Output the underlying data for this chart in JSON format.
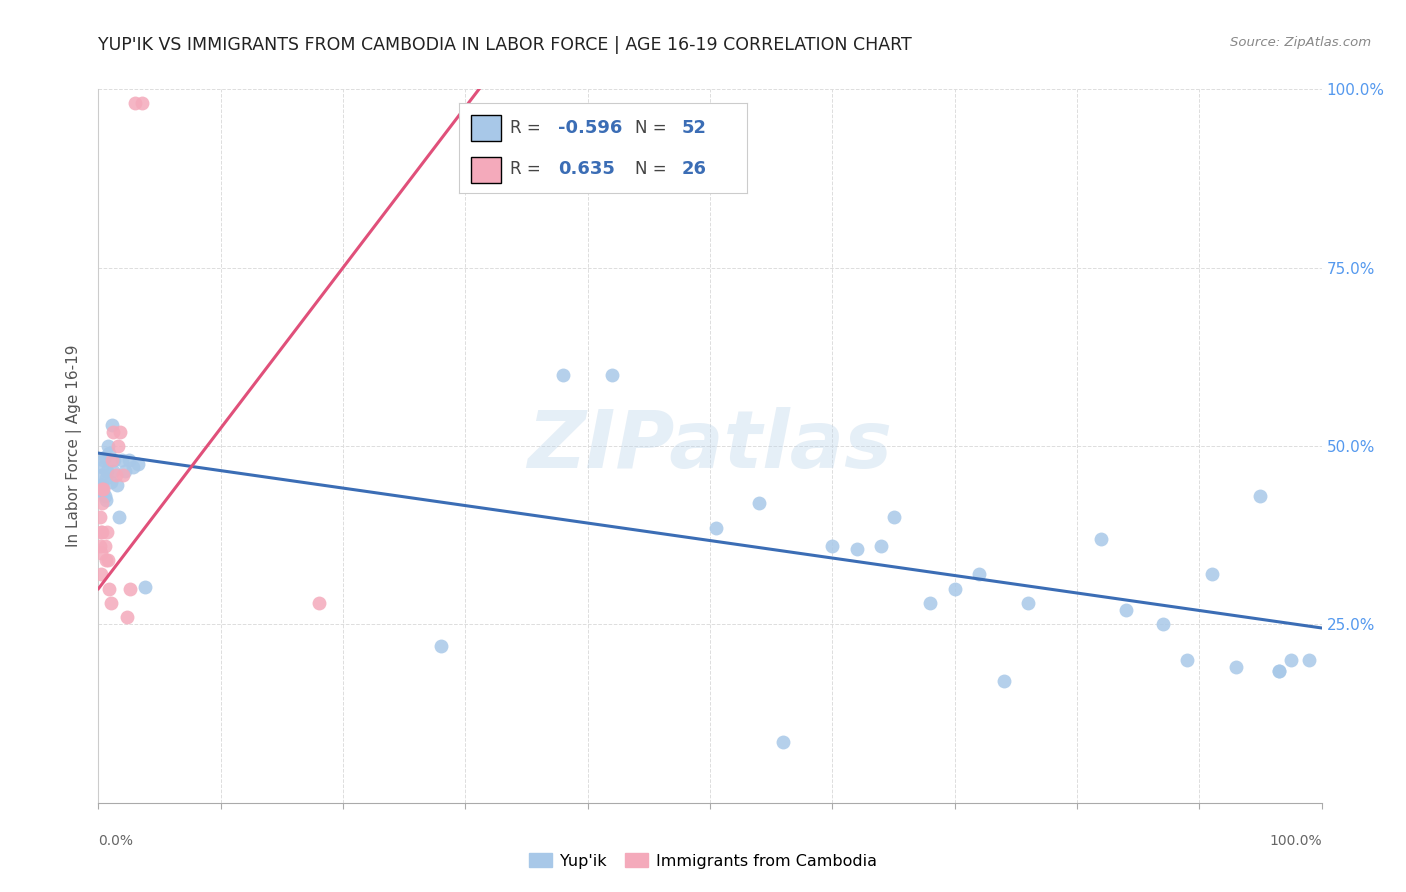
{
  "title": "YUP'IK VS IMMIGRANTS FROM CAMBODIA IN LABOR FORCE | AGE 16-19 CORRELATION CHART",
  "source": "Source: ZipAtlas.com",
  "ylabel": "In Labor Force | Age 16-19",
  "watermark": "ZIPatlas",
  "legend_blue_r": "-0.596",
  "legend_blue_n": "52",
  "legend_pink_r": "0.635",
  "legend_pink_n": "26",
  "blue_scatter_x": [
    0.001,
    0.002,
    0.002,
    0.003,
    0.003,
    0.004,
    0.004,
    0.005,
    0.005,
    0.006,
    0.006,
    0.007,
    0.008,
    0.009,
    0.01,
    0.011,
    0.012,
    0.013,
    0.015,
    0.017,
    0.019,
    0.022,
    0.025,
    0.028,
    0.032,
    0.038,
    0.28,
    0.38,
    0.42,
    0.505,
    0.54,
    0.56,
    0.6,
    0.62,
    0.64,
    0.65,
    0.68,
    0.7,
    0.72,
    0.74,
    0.76,
    0.82,
    0.84,
    0.87,
    0.89,
    0.91,
    0.93,
    0.95,
    0.965,
    0.965,
    0.975,
    0.99
  ],
  "blue_scatter_y": [
    0.445,
    0.44,
    0.46,
    0.47,
    0.445,
    0.48,
    0.435,
    0.485,
    0.43,
    0.425,
    0.455,
    0.465,
    0.5,
    0.49,
    0.45,
    0.53,
    0.465,
    0.48,
    0.445,
    0.4,
    0.48,
    0.465,
    0.48,
    0.47,
    0.475,
    0.302,
    0.22,
    0.6,
    0.6,
    0.385,
    0.42,
    0.085,
    0.36,
    0.355,
    0.36,
    0.4,
    0.28,
    0.3,
    0.32,
    0.17,
    0.28,
    0.37,
    0.27,
    0.25,
    0.2,
    0.32,
    0.19,
    0.43,
    0.185,
    0.185,
    0.2,
    0.2
  ],
  "pink_scatter_x": [
    0.001,
    0.001,
    0.002,
    0.002,
    0.003,
    0.003,
    0.004,
    0.005,
    0.006,
    0.007,
    0.008,
    0.009,
    0.01,
    0.011,
    0.012,
    0.014,
    0.016,
    0.018,
    0.02,
    0.023,
    0.026,
    0.03,
    0.036,
    0.18,
    0.002,
    0.003
  ],
  "pink_scatter_y": [
    0.4,
    0.36,
    0.38,
    0.32,
    0.42,
    0.38,
    0.44,
    0.36,
    0.34,
    0.38,
    0.34,
    0.3,
    0.28,
    0.48,
    0.52,
    0.46,
    0.5,
    0.52,
    0.46,
    0.26,
    0.3,
    0.98,
    0.98,
    0.28,
    0.35,
    0.44
  ],
  "blue_line_x": [
    0.0,
    1.0
  ],
  "blue_line_y": [
    0.49,
    0.245
  ],
  "pink_line_x": [
    0.0,
    0.32
  ],
  "pink_line_y": [
    0.3,
    1.02
  ],
  "blue_color": "#A8C8E8",
  "pink_color": "#F4AABB",
  "blue_line_color": "#3B6DB5",
  "pink_line_color": "#E0507A",
  "bg_color": "#FFFFFF",
  "grid_color": "#DDDDDD",
  "right_tick_color": "#5599EE",
  "xlim": [
    0.0,
    1.0
  ],
  "ylim": [
    0.0,
    1.0
  ],
  "yticks": [
    0.25,
    0.5,
    0.75,
    1.0
  ],
  "ytick_labels": [
    "25.0%",
    "50.0%",
    "75.0%",
    "100.0%"
  ],
  "xtick_positions": [
    0.0,
    0.1,
    0.2,
    0.3,
    0.4,
    0.5,
    0.6,
    0.7,
    0.8,
    0.9,
    1.0
  ],
  "marker_size": 100
}
